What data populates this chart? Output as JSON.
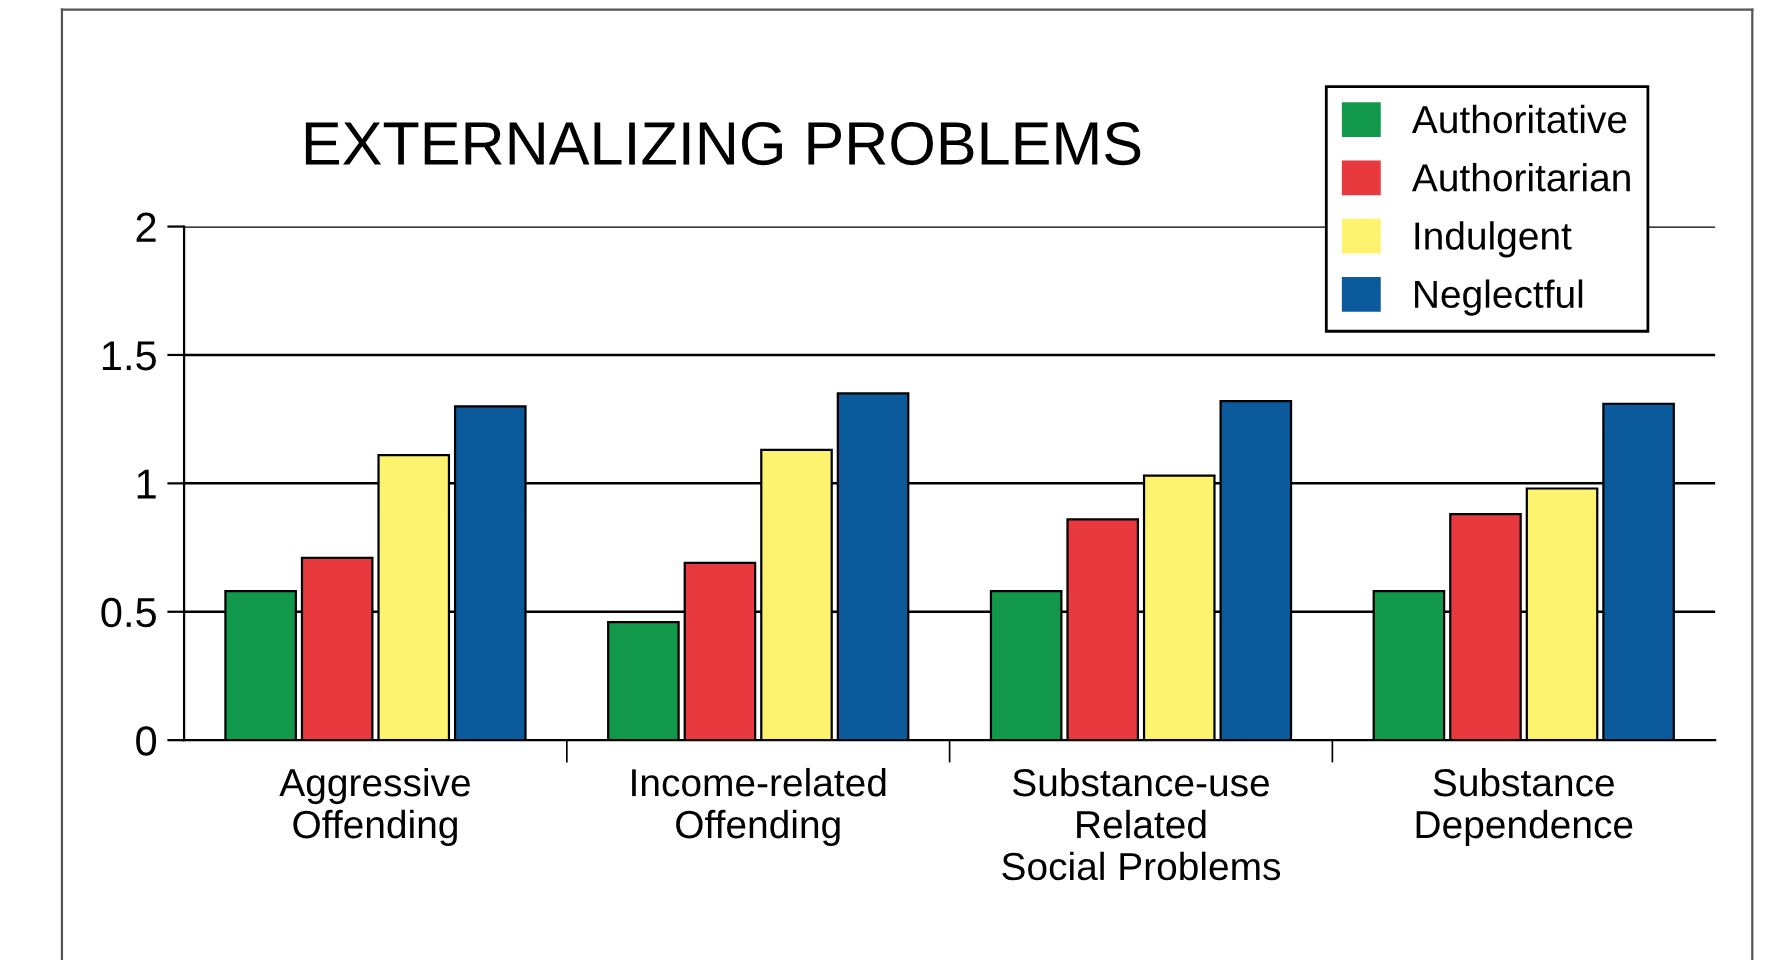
{
  "chart_data": {
    "type": "bar",
    "title": "EXTERNALIZING PROBLEMS",
    "categories": [
      "Aggressive\nOffending",
      "Income-related\nOffending",
      "Substance-use\nRelated\nSocial Problems",
      "Substance\nDependence"
    ],
    "series": [
      {
        "name": "Authoritative",
        "color": "#12984a",
        "values": [
          0.58,
          0.46,
          0.58,
          0.58
        ]
      },
      {
        "name": "Authoritarian",
        "color": "#e8393f",
        "values": [
          0.71,
          0.69,
          0.86,
          0.88
        ]
      },
      {
        "name": "Indulgent",
        "color": "#fdf36e",
        "values": [
          1.11,
          1.13,
          1.03,
          0.98
        ]
      },
      {
        "name": "Neglectful",
        "color": "#0a5a9c",
        "values": [
          1.3,
          1.35,
          1.32,
          1.31
        ]
      }
    ],
    "ylim": [
      0,
      2
    ],
    "yticks": [
      0,
      0.5,
      1,
      1.5,
      2
    ],
    "grid": "y",
    "legend": "top right"
  }
}
